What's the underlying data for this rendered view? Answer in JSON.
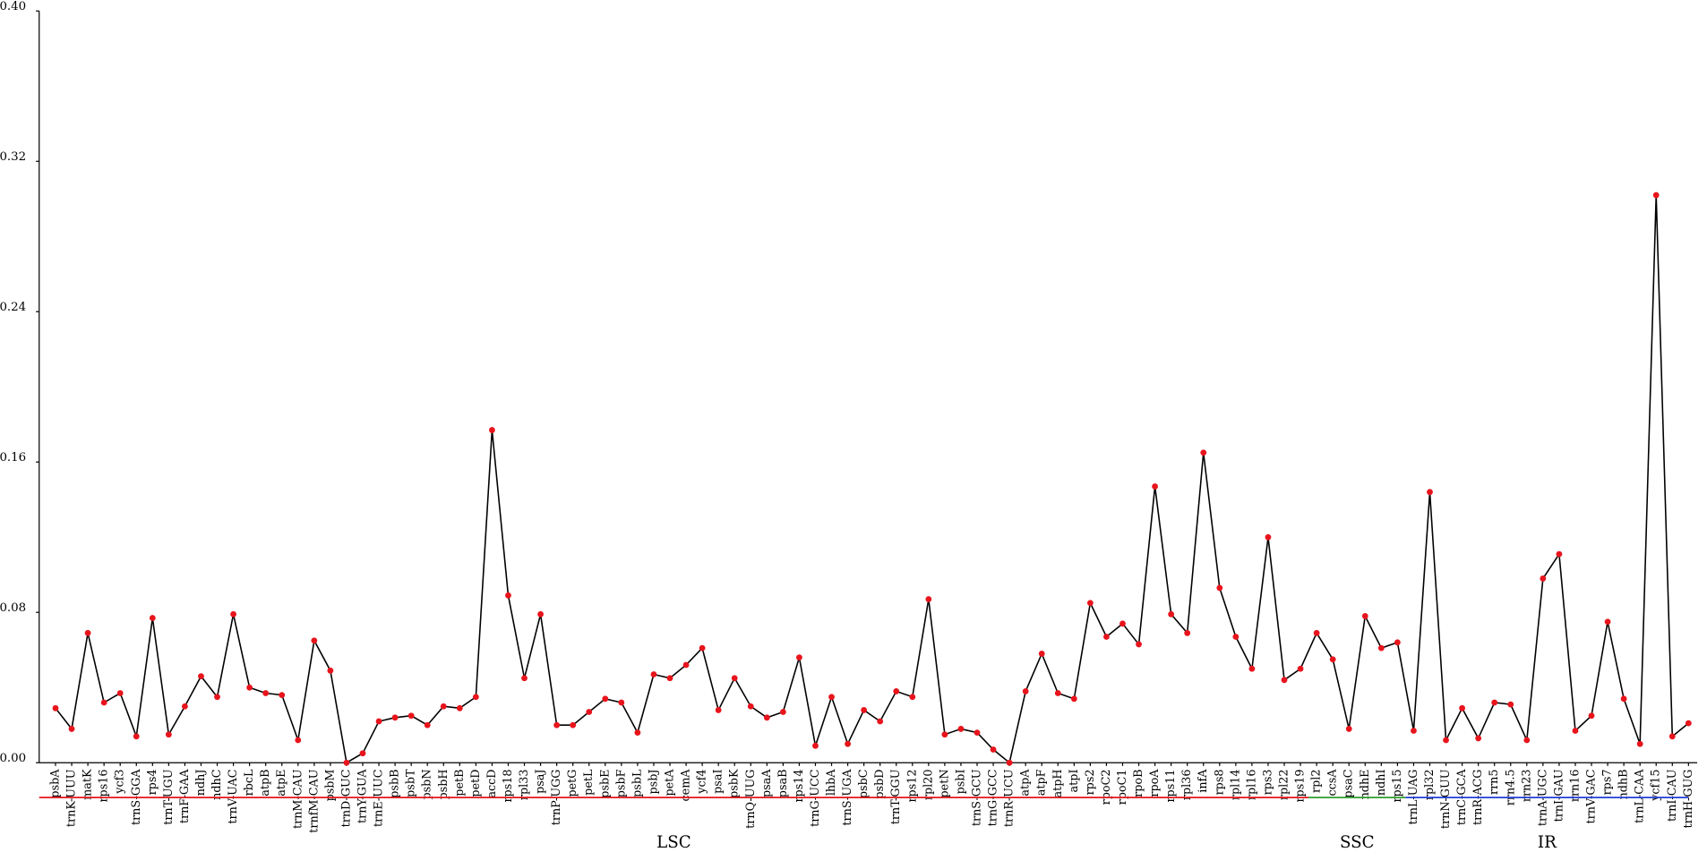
{
  "chart_data": {
    "type": "line",
    "categories": [
      "psbA",
      "trnK-UUU",
      "matK",
      "rps16",
      "ycf3",
      "trnS-GGA",
      "rps4",
      "trnT-UGU",
      "trnF-GAA",
      "ndhJ",
      "ndhC",
      "trnV-UAC",
      "rbcL",
      "atpB",
      "atpE",
      "trnM-CAU",
      "trnfM-CAU",
      "psbM",
      "trnD-GUC",
      "trnY-GUA",
      "trnE-UUC",
      "psbB",
      "psbT",
      "psbN",
      "psbH",
      "petB",
      "petD",
      "accD",
      "rps18",
      "rpl33",
      "psaJ",
      "trnP-UGG",
      "petG",
      "petL",
      "psbE",
      "psbF",
      "psbL",
      "psbJ",
      "petA",
      "cemA",
      "ycf4",
      "psaI",
      "psbK",
      "trnQ-UUG",
      "psaA",
      "psaB",
      "rps14",
      "trnG-UCC",
      "lhbA",
      "trnS-UGA",
      "psbC",
      "psbD",
      "trnT-GGU",
      "rps12",
      "rpl20",
      "petN",
      "psbI",
      "trnS-GCU",
      "trnG-GCC",
      "trnR-UCU",
      "atpA",
      "atpF",
      "atpH",
      "atpI",
      "rps2",
      "rpoC2",
      "rpoC1",
      "rpoB",
      "rpoA",
      "rps11",
      "rpl36",
      "infA",
      "rps8",
      "rpl14",
      "rpl16",
      "rps3",
      "rpl22",
      "rps19",
      "rpl2",
      "ccsA",
      "psaC",
      "ndhE",
      "ndhI",
      "rps15",
      "trnL-UAG",
      "rpl32",
      "trnN-GUU",
      "trnC-GCA",
      "trnR-ACG",
      "rrn5",
      "rrn4.5",
      "rrn23",
      "trnA-UGC",
      "trnI-GAU",
      "rrn16",
      "trnV-GAC",
      "rps7",
      "ndhB",
      "trnL-CAA",
      "ycf15",
      "trnI-CAU",
      "trnH-GUG"
    ],
    "values": [
      0.029,
      0.018,
      0.069,
      0.032,
      0.037,
      0.014,
      0.077,
      0.015,
      0.03,
      0.046,
      0.035,
      0.079,
      0.04,
      0.037,
      0.036,
      0.012,
      0.065,
      0.049,
      0.0,
      0.005,
      0.022,
      0.024,
      0.025,
      0.02,
      0.03,
      0.029,
      0.035,
      0.177,
      0.089,
      0.045,
      0.079,
      0.02,
      0.02,
      0.027,
      0.034,
      0.032,
      0.016,
      0.047,
      0.045,
      0.052,
      0.061,
      0.028,
      0.045,
      0.03,
      0.024,
      0.027,
      0.056,
      0.009,
      0.035,
      0.01,
      0.028,
      0.022,
      0.038,
      0.035,
      0.087,
      0.015,
      0.018,
      0.016,
      0.007,
      0.0,
      0.038,
      0.058,
      0.037,
      0.034,
      0.085,
      0.067,
      0.074,
      0.063,
      0.147,
      0.079,
      0.069,
      0.165,
      0.093,
      0.067,
      0.05,
      0.12,
      0.044,
      0.05,
      0.069,
      0.055,
      0.018,
      0.078,
      0.061,
      0.064,
      0.017,
      0.144,
      0.012,
      0.029,
      0.013,
      0.032,
      0.031,
      0.012,
      0.098,
      0.111,
      0.017,
      0.025,
      0.075,
      0.034,
      0.01,
      0.302,
      0.014,
      0.021
    ],
    "color": "#000000",
    "marker_color": "#e8141c",
    "ylim": [
      0,
      0.4
    ],
    "yticks": [
      {
        "value": 0,
        "label": "0.00"
      },
      {
        "value": 0.08,
        "label": "0.08"
      },
      {
        "value": 0.16,
        "label": "0.16"
      },
      {
        "value": 0.24,
        "label": "0.24"
      },
      {
        "value": 0.32,
        "label": "0.32"
      },
      {
        "value": 0.4,
        "label": "0.40"
      }
    ],
    "regions": [
      {
        "name": "LSC",
        "color": "#e8141c",
        "from": "psbA",
        "to": "rps19"
      },
      {
        "name": "SSC",
        "color": "#2ca02c",
        "from": "rpl2",
        "to": "rps15"
      },
      {
        "name": "IR",
        "color": "#1f3fd6",
        "from": "trnL-UAG",
        "to": "trnH-GUG"
      }
    ]
  }
}
